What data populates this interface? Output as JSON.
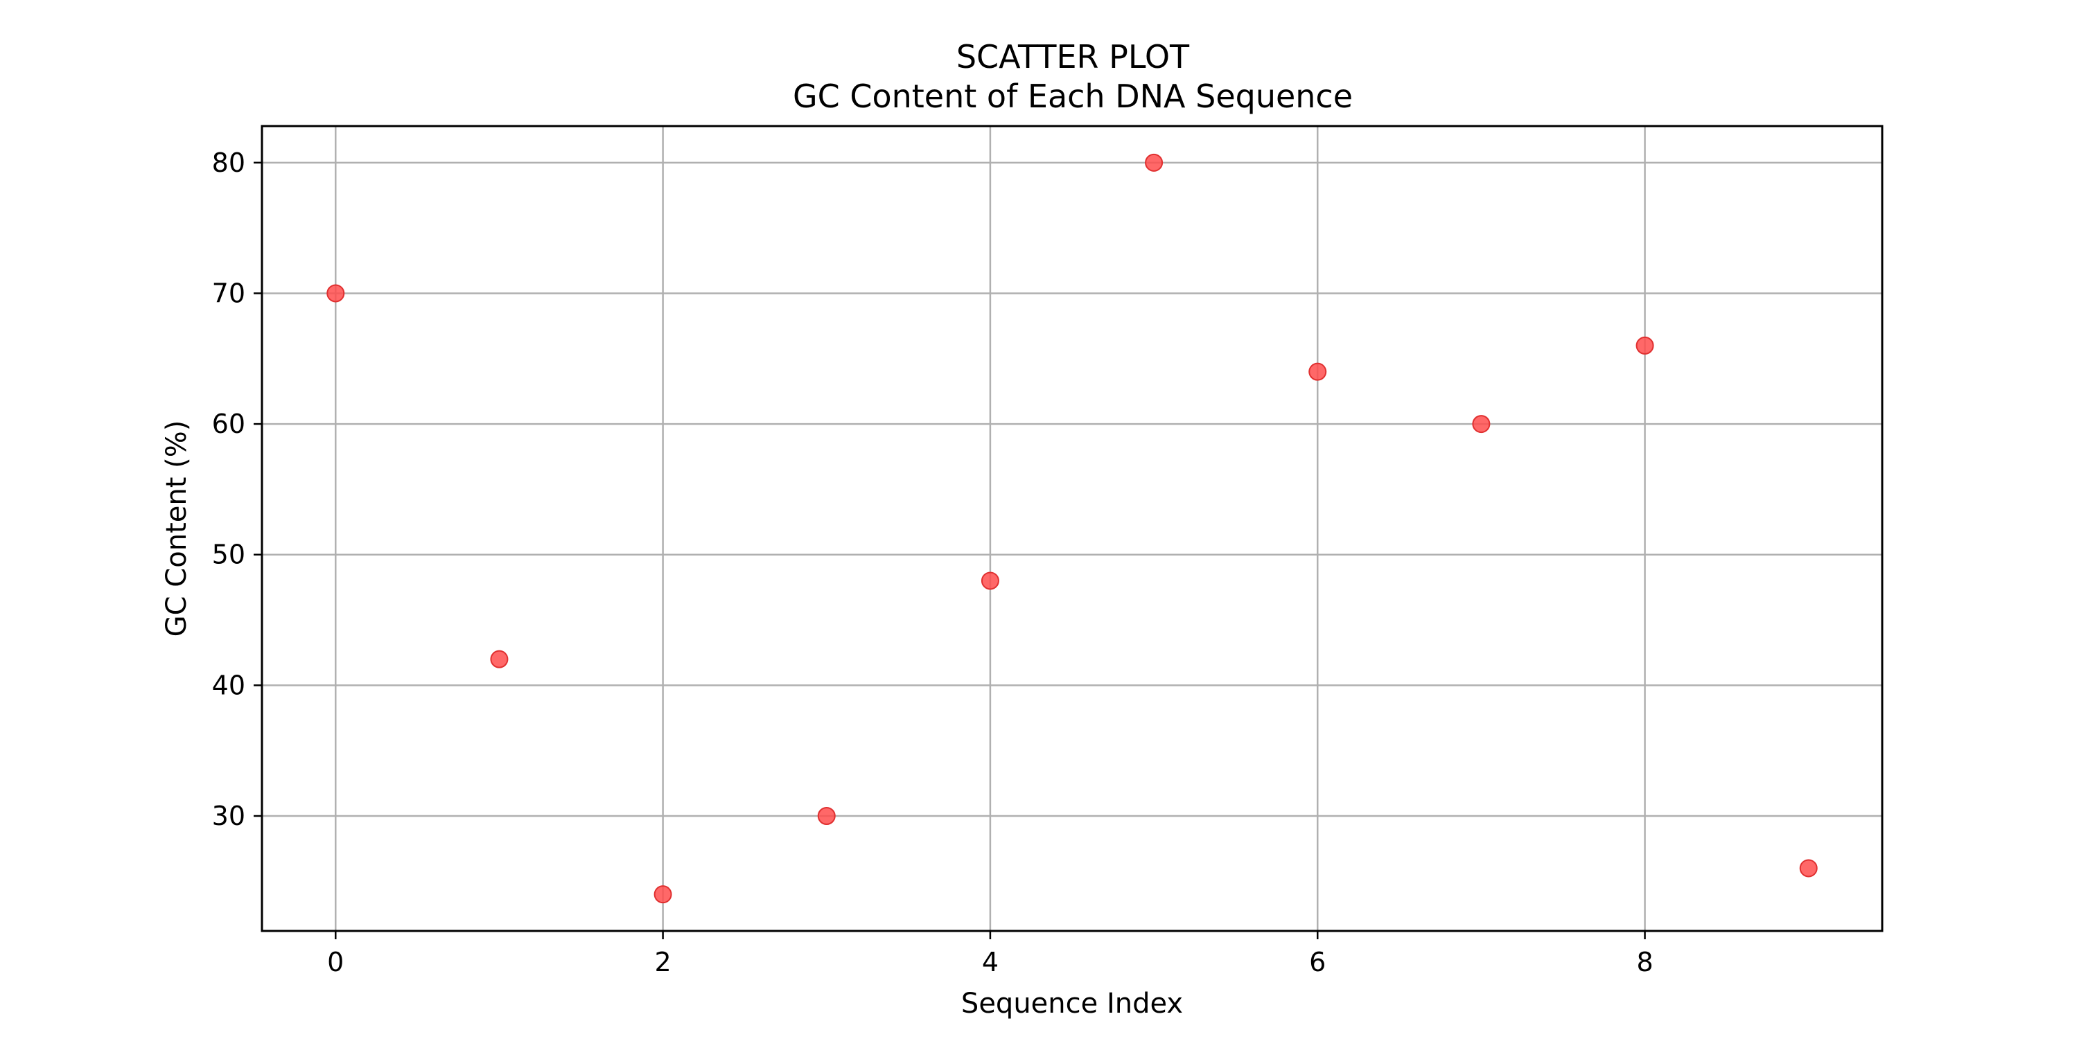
{
  "chart_data": {
    "type": "scatter",
    "title": "SCATTER PLOT",
    "subtitle": "GC Content of Each DNA Sequence",
    "xlabel": "Sequence Index",
    "ylabel": "GC Content (%)",
    "xlim": [
      -0.45,
      9.45
    ],
    "ylim": [
      21.2,
      82.8
    ],
    "x_ticks": [
      0,
      2,
      4,
      6,
      8
    ],
    "y_ticks": [
      30,
      40,
      50,
      60,
      70,
      80
    ],
    "grid": true,
    "series": [
      {
        "x": [
          0,
          1,
          2,
          3,
          4,
          5,
          6,
          7,
          8,
          9
        ],
        "y": [
          70,
          42,
          24,
          30,
          48,
          80,
          64,
          60,
          66,
          26
        ]
      }
    ],
    "marker_color": "#ff4d4d",
    "marker_edge_color": "#e03030"
  }
}
